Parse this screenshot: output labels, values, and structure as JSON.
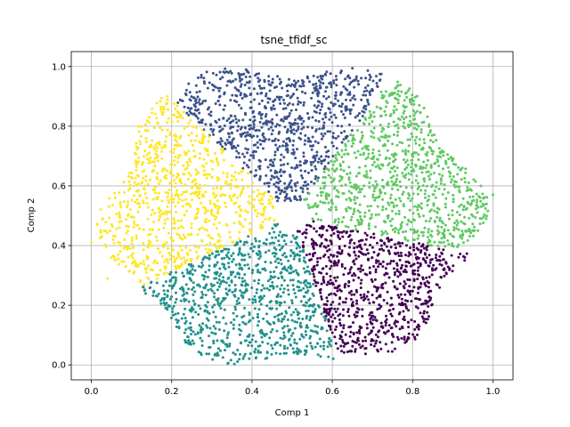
{
  "chart_data": {
    "type": "scatter",
    "title": "tsne_tfidf_sc",
    "xlabel": "Comp  1",
    "ylabel": "Comp  2",
    "xlim": [
      -0.05,
      1.05
    ],
    "ylim": [
      -0.05,
      1.05
    ],
    "xticks": [
      0.0,
      0.2,
      0.4,
      0.6,
      0.8,
      1.0
    ],
    "yticks": [
      0.0,
      0.2,
      0.4,
      0.6,
      0.8,
      1.0
    ],
    "xtick_labels": [
      "0.0",
      "0.2",
      "0.4",
      "0.6",
      "0.8",
      "1.0"
    ],
    "ytick_labels": [
      "0.0",
      "0.2",
      "0.4",
      "0.6",
      "0.8",
      "1.0"
    ],
    "grid": true,
    "cloud": {
      "center": [
        0.5,
        0.5
      ],
      "radius_x": 0.46,
      "radius_y": 0.5
    },
    "clusters": [
      {
        "color": "#3b528b",
        "sector_deg": [
          60,
          130
        ],
        "count": 900
      },
      {
        "color": "#5ec962",
        "sector_deg": [
          -15,
          60
        ],
        "count": 900
      },
      {
        "color": "#440154",
        "sector_deg": [
          -75,
          -15
        ],
        "count": 800
      },
      {
        "color": "#21918c",
        "sector_deg": [
          -150,
          -75
        ],
        "count": 900
      },
      {
        "color": "#fde725",
        "sector_deg": [
          130,
          210
        ],
        "count": 850
      }
    ],
    "outliers": [
      {
        "x": 0.0,
        "y": 0.41,
        "color": "#fde725"
      },
      {
        "x": 0.04,
        "y": 0.29,
        "color": "#fde725"
      },
      {
        "x": 1.0,
        "y": 0.57,
        "color": "#5ec962"
      },
      {
        "x": 0.97,
        "y": 0.6,
        "color": "#5ec962"
      }
    ]
  }
}
